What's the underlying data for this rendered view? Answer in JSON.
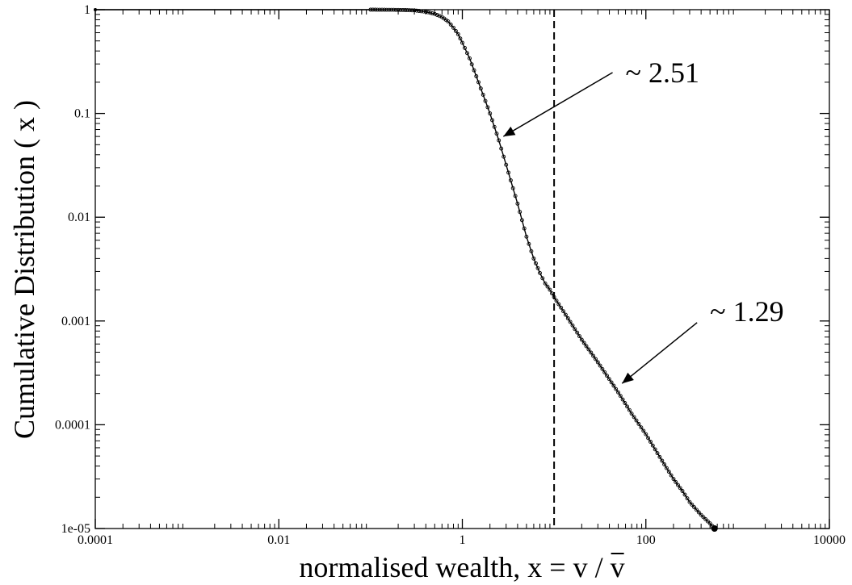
{
  "chart_data": {
    "type": "line",
    "scale": {
      "x": "log",
      "y": "log"
    },
    "xlim": [
      0.0001,
      10000
    ],
    "ylim": [
      1e-05,
      1
    ],
    "grid": false,
    "xlabel": "normalised wealth, x = v / v",
    "ylabel": "Cumulative Distribution ( x )",
    "x_ticks": [
      {
        "value": 0.0001,
        "label": "0.0001"
      },
      {
        "value": 0.01,
        "label": "0.01"
      },
      {
        "value": 1,
        "label": "1"
      },
      {
        "value": 100,
        "label": "100"
      },
      {
        "value": 10000,
        "label": "10000"
      }
    ],
    "y_ticks": [
      {
        "value": 1e-05,
        "label": "1e-05"
      },
      {
        "value": 0.0001,
        "label": "0.0001"
      },
      {
        "value": 0.001,
        "label": "0.001"
      },
      {
        "value": 0.01,
        "label": "0.01"
      },
      {
        "value": 0.1,
        "label": "0.1"
      },
      {
        "value": 1,
        "label": "1"
      }
    ],
    "vline": {
      "x": 10,
      "style": "dashed"
    },
    "series": [
      {
        "x": [
          0.0001,
          0.1,
          0.2,
          0.3,
          0.4,
          0.5,
          0.6,
          0.7,
          0.8,
          0.9,
          1.0,
          1.2,
          1.5,
          2.0,
          2.5,
          3.0,
          4.0,
          5.0,
          6.0,
          7.0,
          8.0,
          9.0,
          10,
          15,
          20,
          30,
          50,
          70,
          100,
          150,
          200,
          250,
          300,
          400,
          500,
          560
        ],
        "y": [
          1,
          1,
          0.995,
          0.985,
          0.955,
          0.91,
          0.85,
          0.77,
          0.67,
          0.58,
          0.48,
          0.34,
          0.2,
          0.1,
          0.055,
          0.032,
          0.0135,
          0.0065,
          0.004,
          0.0029,
          0.0023,
          0.002,
          0.0017,
          0.00098,
          0.00066,
          0.0004,
          0.000205,
          0.000128,
          8.1e-05,
          4.5e-05,
          3e-05,
          2.3e-05,
          1.8e-05,
          1.35e-05,
          1.12e-05,
          1e-05
        ]
      }
    ],
    "annotations": [
      {
        "text": "~ 2.51",
        "x": 60,
        "y": 0.2,
        "arrow_to": {
          "x": 2.8,
          "y": 0.06
        }
      },
      {
        "text": "~ 1.29",
        "x": 500,
        "y": 0.001,
        "arrow_to": {
          "x": 55,
          "y": 0.00025
        }
      }
    ]
  }
}
